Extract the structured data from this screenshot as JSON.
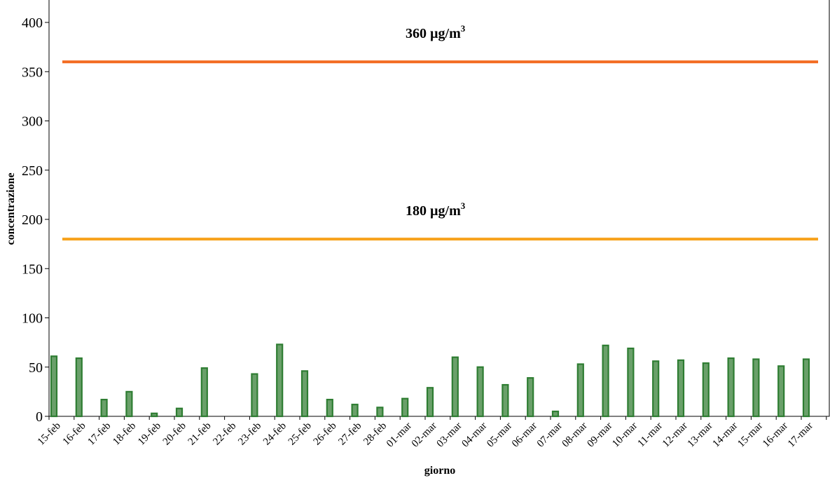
{
  "chart_data": {
    "type": "bar",
    "xlabel": "giorno",
    "ylabel": "concentrazione",
    "ylim": [
      0,
      400
    ],
    "yticks": [
      0,
      50,
      100,
      150,
      200,
      250,
      300,
      350,
      400
    ],
    "grid": false,
    "categories": [
      "15-feb",
      "16-feb",
      "17-feb",
      "18-feb",
      "19-feb",
      "20-feb",
      "21-feb",
      "22-feb",
      "23-feb",
      "24-feb",
      "25-feb",
      "26-feb",
      "27-feb",
      "28-feb",
      "01-mar",
      "02-mar",
      "03-mar",
      "04-mar",
      "05-mar",
      "06-mar",
      "07-mar",
      "08-mar",
      "09-mar",
      "10-mar",
      "11-mar",
      "12-mar",
      "13-mar",
      "14-mar",
      "15-mar",
      "16-mar",
      "17-mar"
    ],
    "values": [
      61,
      59,
      17,
      25,
      3,
      8,
      49,
      null,
      43,
      73,
      46,
      17,
      12,
      9,
      18,
      29,
      60,
      50,
      32,
      39,
      5,
      53,
      72,
      69,
      56,
      57,
      54,
      59,
      58,
      51,
      58
    ],
    "bar_color": "#2e7d32",
    "bar_fill": "#6aa06a",
    "reference_lines": [
      {
        "value": 360,
        "label": "360 µg/m",
        "sup": "3",
        "color": "#f36b21"
      },
      {
        "value": 180,
        "label": "180 µg/m",
        "sup": "3",
        "color": "#f7a21b"
      }
    ]
  }
}
